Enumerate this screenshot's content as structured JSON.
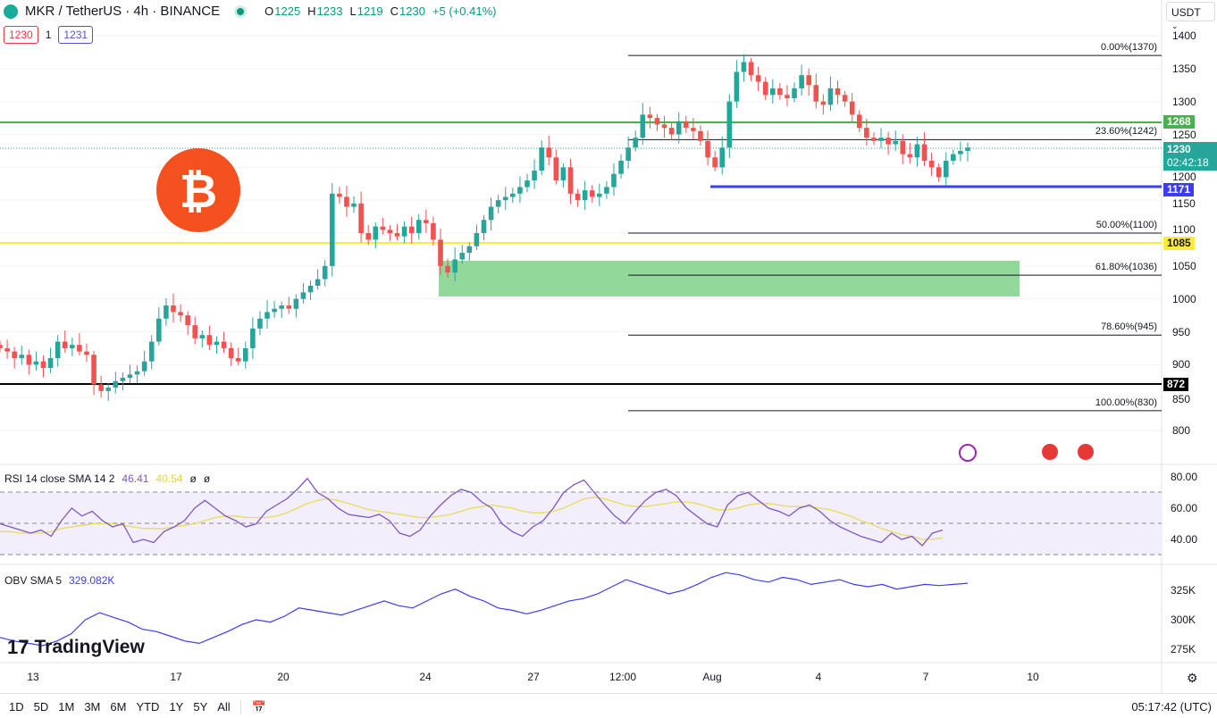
{
  "header": {
    "symbol": "MKR / TetherUS · 4h · BINANCE",
    "open_label": "O",
    "open": "1225",
    "high_label": "H",
    "high": "1233",
    "low_label": "L",
    "low": "1219",
    "close_label": "C",
    "close": "1230",
    "change": "+5 (+0.41%)",
    "sell": "1230",
    "spread": "1",
    "buy": "1231"
  },
  "currency": "USDT",
  "price_axis": [
    "1400",
    "1350",
    "1300",
    "1250",
    "1200",
    "1150",
    "1100",
    "1050",
    "1000",
    "950",
    "900",
    "850",
    "800"
  ],
  "tags": {
    "resistance": "1268",
    "current": "1230",
    "countdown": "02:42:18",
    "support": "1171",
    "yellow": "1085",
    "black": "872"
  },
  "fib": [
    {
      "label": "0.00%(1370)",
      "v": 1370
    },
    {
      "label": "23.60%(1242)",
      "v": 1242
    },
    {
      "label": "50.00%(1100)",
      "v": 1100
    },
    {
      "label": "61.80%(1036)",
      "v": 1036
    },
    {
      "label": "78.60%(945)",
      "v": 945
    },
    {
      "label": "100.00%(830)",
      "v": 830
    }
  ],
  "rsi": {
    "title": "RSI 14 close SMA 14 2",
    "value": "46.41",
    "sma": "40.54",
    "extra1": "ø",
    "extra2": "ø",
    "axis": [
      "80.00",
      "60.00",
      "40.00"
    ]
  },
  "obv": {
    "title": "OBV SMA 5",
    "value": "329.082K",
    "axis": [
      "325K",
      "300K",
      "275K"
    ]
  },
  "dates": [
    "13",
    "17",
    "20",
    "24",
    "27",
    "12:00",
    "Aug",
    "4",
    "7",
    "10"
  ],
  "ranges": [
    "1D",
    "5D",
    "1M",
    "3M",
    "6M",
    "YTD",
    "1Y",
    "5Y",
    "All"
  ],
  "clock": "05:17:42 (UTC)",
  "watermark": "TradingView",
  "colors": {
    "up": "#26a69a",
    "down": "#ef5350",
    "green_line": "#4caf50",
    "yellow_line": "#ffeb3b",
    "blue_line": "#3d3df0"
  },
  "chart_data": {
    "type": "candlestick",
    "title": "MKR / TetherUS 4h",
    "ylim": [
      800,
      1400
    ],
    "closes": [
      925,
      920,
      910,
      915,
      900,
      905,
      895,
      910,
      935,
      925,
      930,
      920,
      915,
      870,
      860,
      865,
      875,
      880,
      885,
      890,
      905,
      935,
      970,
      990,
      980,
      975,
      960,
      940,
      945,
      930,
      935,
      925,
      910,
      905,
      925,
      955,
      970,
      980,
      985,
      990,
      985,
      1000,
      1010,
      1020,
      1030,
      1050,
      1160,
      1155,
      1140,
      1145,
      1100,
      1090,
      1110,
      1105,
      1100,
      1095,
      1110,
      1100,
      1120,
      1115,
      1090,
      1050,
      1040,
      1060,
      1070,
      1080,
      1100,
      1120,
      1140,
      1150,
      1155,
      1160,
      1170,
      1180,
      1195,
      1230,
      1215,
      1180,
      1200,
      1160,
      1150,
      1165,
      1155,
      1160,
      1170,
      1190,
      1210,
      1230,
      1245,
      1280,
      1275,
      1265,
      1260,
      1250,
      1270,
      1260,
      1255,
      1240,
      1215,
      1200,
      1230,
      1300,
      1345,
      1360,
      1340,
      1330,
      1310,
      1320,
      1310,
      1305,
      1320,
      1340,
      1325,
      1300,
      1295,
      1320,
      1310,
      1300,
      1280,
      1260,
      1245,
      1240,
      1245,
      1235,
      1240,
      1220,
      1215,
      1235,
      1210,
      1200,
      1185,
      1210,
      1220,
      1225,
      1230
    ],
    "rsi": [
      50,
      48,
      46,
      44,
      46,
      42,
      52,
      60,
      55,
      58,
      52,
      48,
      50,
      38,
      40,
      38,
      45,
      48,
      52,
      60,
      65,
      60,
      55,
      52,
      48,
      50,
      58,
      62,
      66,
      72,
      79,
      70,
      66,
      60,
      56,
      55,
      54,
      56,
      52,
      44,
      42,
      46,
      55,
      62,
      68,
      72,
      70,
      64,
      60,
      50,
      45,
      42,
      48,
      52,
      60,
      70,
      75,
      78,
      70,
      62,
      55,
      50,
      58,
      65,
      70,
      72,
      68,
      60,
      55,
      50,
      48,
      62,
      68,
      70,
      65,
      60,
      58,
      55,
      60,
      62,
      58,
      52,
      48,
      45,
      42,
      40,
      38,
      44,
      40,
      42,
      36,
      44,
      46
    ],
    "rsi_sma": [
      45,
      45,
      44,
      44,
      44,
      45,
      47,
      48,
      49,
      50,
      50,
      50,
      49,
      48,
      47,
      47,
      47,
      48,
      49,
      50,
      52,
      54,
      55,
      55,
      54,
      54,
      54,
      55,
      57,
      60,
      63,
      65,
      66,
      65,
      63,
      61,
      59,
      58,
      57,
      56,
      55,
      54,
      54,
      55,
      56,
      58,
      60,
      61,
      62,
      61,
      60,
      58,
      57,
      57,
      58,
      60,
      63,
      66,
      67,
      66,
      64,
      62,
      61,
      61,
      62,
      63,
      64,
      64,
      63,
      61,
      59,
      59,
      60,
      62,
      63,
      63,
      62,
      61,
      61,
      61,
      60,
      59,
      57,
      55,
      52,
      50,
      47,
      45,
      43,
      42,
      40,
      40,
      41
    ],
    "obv": [
      285,
      282,
      280,
      278,
      282,
      288,
      300,
      306,
      302,
      298,
      292,
      290,
      286,
      282,
      280,
      285,
      290,
      296,
      300,
      298,
      303,
      310,
      308,
      306,
      304,
      308,
      312,
      316,
      312,
      310,
      316,
      322,
      326,
      320,
      316,
      310,
      308,
      305,
      308,
      312,
      316,
      318,
      322,
      328,
      334,
      330,
      326,
      322,
      325,
      330,
      336,
      340,
      338,
      334,
      332,
      336,
      334,
      330,
      332,
      334,
      330,
      328,
      330,
      326,
      328,
      330,
      329,
      330,
      331
    ]
  }
}
